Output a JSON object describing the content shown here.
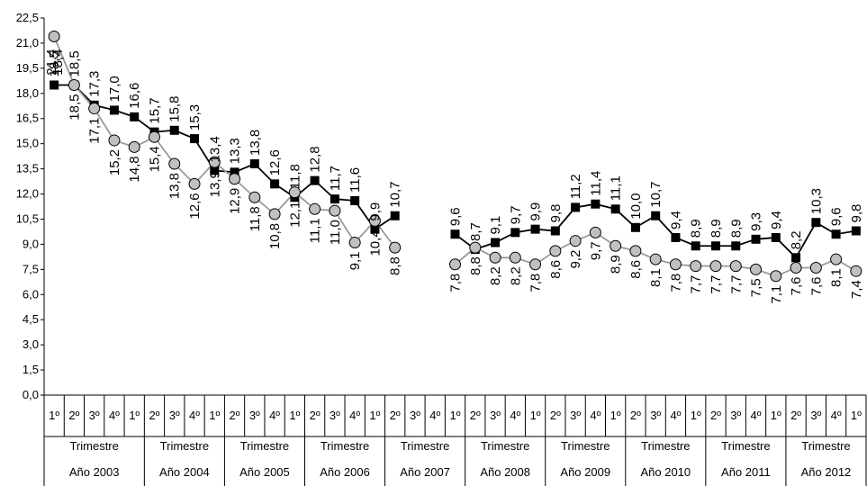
{
  "chart_data": {
    "type": "line",
    "title": "",
    "xlabel": "",
    "ylabel": "",
    "ylim": [
      0,
      22.5
    ],
    "yticks": [
      "0,0",
      "1,5",
      "3,0",
      "4,5",
      "6,0",
      "7,5",
      "9,0",
      "10,5",
      "12,0",
      "13,5",
      "15,0",
      "16,5",
      "18,0",
      "19,5",
      "21,0",
      "22,5"
    ],
    "grid": false,
    "legend": "none",
    "categories": {
      "quarters": [
        "1º",
        "2º",
        "3º",
        "4º"
      ],
      "period_label": "Trimestre",
      "years": [
        "Año 2003",
        "Año 2004",
        "Año 2005",
        "Año 2006",
        "Año 2007",
        "Año 2008",
        "Año 2009",
        "Año 2010",
        "Año 2011",
        "Año 2012"
      ]
    },
    "series": [
      {
        "marker": "square",
        "color": "#000000",
        "values": [
          18.5,
          18.5,
          17.3,
          17.0,
          16.6,
          15.7,
          15.8,
          15.3,
          13.4,
          13.3,
          13.8,
          12.6,
          11.8,
          12.8,
          11.7,
          11.6,
          9.9,
          10.7,
          null,
          null,
          9.6,
          8.7,
          9.1,
          9.7,
          9.9,
          9.8,
          11.2,
          11.4,
          11.1,
          10.0,
          10.7,
          9.4,
          8.9,
          8.9,
          8.9,
          9.3,
          9.4,
          8.2,
          10.3,
          9.6,
          9.8
        ],
        "labels": [
          "18,5",
          "18,5",
          "17,3",
          "17,0",
          "16,6",
          "15,7",
          "15,8",
          "15,3",
          "13,4",
          "13,3",
          "13,8",
          "12,6",
          "11,8",
          "12,8",
          "11,7",
          "11,6",
          "9,9",
          "10,7",
          "",
          "",
          "9,6",
          "8,7",
          "9,1",
          "9,7",
          "9,9",
          "9,8",
          "11,2",
          "11,4",
          "11,1",
          "10,0",
          "10,7",
          "9,4",
          "8,9",
          "8,9",
          "8,9",
          "9,3",
          "9,4",
          "8,2",
          "10,3",
          "9,6",
          "9,8"
        ]
      },
      {
        "marker": "circle",
        "color": "#c0c0c0",
        "values": [
          21.4,
          18.5,
          17.1,
          15.2,
          14.8,
          15.4,
          13.8,
          12.6,
          13.9,
          12.9,
          11.8,
          10.8,
          12.1,
          11.1,
          11.0,
          9.1,
          10.4,
          8.8,
          null,
          null,
          7.8,
          8.8,
          8.2,
          8.2,
          7.8,
          8.6,
          9.2,
          9.7,
          8.9,
          8.6,
          8.1,
          7.8,
          7.7,
          7.7,
          7.7,
          7.5,
          7.1,
          7.6,
          7.6,
          8.1,
          7.4
        ],
        "labels": [
          "",
          "18,5",
          "17,1",
          "15,2",
          "14,8",
          "15,4",
          "13,8",
          "12,6",
          "13,9",
          "12,9",
          "11,8",
          "10,8",
          "12,1",
          "11,1",
          "11,0",
          "9,1",
          "10,4",
          "8,8",
          "",
          "",
          "7,8",
          "8,8",
          "8,2",
          "8,2",
          "7,8",
          "8,6",
          "9,2",
          "9,7",
          "8,9",
          "8,6",
          "8,1",
          "7,8",
          "7,7",
          "7,7",
          "7,7",
          "7,5",
          "7,1",
          "7,6",
          "7,6",
          "8,1",
          "7,4"
        ]
      }
    ],
    "extra_labels": [
      "21,4",
      "18,4"
    ]
  }
}
